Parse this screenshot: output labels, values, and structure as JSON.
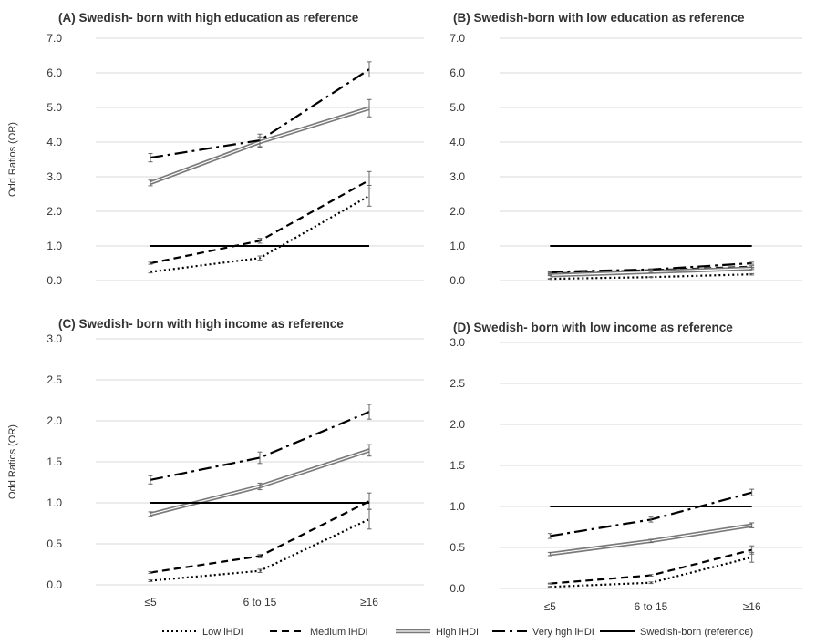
{
  "chart_data": [
    {
      "type": "line",
      "title": "(A) Swedish- born with high education as reference",
      "ylabel": "Odd Ratios (OR)",
      "ylim": [
        0,
        7
      ],
      "yticks": [
        "0.0",
        "1.0",
        "2.0",
        "3.0",
        "4.0",
        "5.0",
        "6.0",
        "7.0"
      ],
      "categories": [
        "≤5",
        "6 to 15",
        "≥16"
      ],
      "grid": true,
      "series": [
        {
          "name": "Low iHDI",
          "values": [
            0.25,
            0.65,
            2.45
          ],
          "err": [
            0.03,
            0.06,
            0.3
          ]
        },
        {
          "name": "Medium iHDI",
          "values": [
            0.5,
            1.15,
            2.9
          ],
          "err": [
            0.03,
            0.07,
            0.25
          ]
        },
        {
          "name": "High iHDI",
          "values": [
            2.82,
            4.0,
            4.98
          ],
          "err": [
            0.08,
            0.15,
            0.25
          ]
        },
        {
          "name": "Very hgh iHDI",
          "values": [
            3.55,
            4.05,
            6.1
          ],
          "err": [
            0.12,
            0.18,
            0.22
          ]
        },
        {
          "name": "Swedish-born (reference)",
          "values": [
            1.0,
            1.0,
            1.0
          ],
          "err": [
            0,
            0,
            0
          ]
        }
      ]
    },
    {
      "type": "line",
      "title": "(B) Swedish-born with low education as reference",
      "ylabel": "",
      "ylim": [
        0,
        7
      ],
      "yticks": [
        "0.0",
        "1.0",
        "2.0",
        "3.0",
        "4.0",
        "5.0",
        "6.0",
        "7.0"
      ],
      "categories": [
        "≤5",
        "6 to 15",
        "≥16"
      ],
      "grid": true,
      "series": [
        {
          "name": "Low iHDI",
          "values": [
            0.05,
            0.1,
            0.18
          ],
          "err": [
            0.01,
            0.01,
            0.02
          ]
        },
        {
          "name": "Medium iHDI",
          "values": [
            0.2,
            0.3,
            0.4
          ],
          "err": [
            0.01,
            0.02,
            0.03
          ]
        },
        {
          "name": "High iHDI",
          "values": [
            0.15,
            0.25,
            0.35
          ],
          "err": [
            0.01,
            0.02,
            0.03
          ]
        },
        {
          "name": "Very hgh iHDI",
          "values": [
            0.25,
            0.32,
            0.5
          ],
          "err": [
            0.01,
            0.02,
            0.03
          ]
        },
        {
          "name": "Swedish-born (reference)",
          "values": [
            1.0,
            1.0,
            1.0
          ],
          "err": [
            0,
            0,
            0
          ]
        }
      ]
    },
    {
      "type": "line",
      "title": "(C) Swedish- born with high income as reference",
      "ylabel": "Odd Ratios (OR)",
      "ylim": [
        0,
        3
      ],
      "yticks": [
        "0.0",
        "0.5",
        "1.0",
        "1.5",
        "2.0",
        "2.5",
        "3.0"
      ],
      "categories": [
        "≤5",
        "6 to 15",
        "≥16"
      ],
      "xtick_labels": true,
      "grid": true,
      "series": [
        {
          "name": "Low iHDI",
          "values": [
            0.05,
            0.17,
            0.8
          ],
          "err": [
            0.01,
            0.02,
            0.12
          ]
        },
        {
          "name": "Medium iHDI",
          "values": [
            0.15,
            0.35,
            1.02
          ],
          "err": [
            0.01,
            0.02,
            0.1
          ]
        },
        {
          "name": "High iHDI",
          "values": [
            0.86,
            1.2,
            1.64
          ],
          "err": [
            0.03,
            0.04,
            0.07
          ]
        },
        {
          "name": "Very hgh iHDI",
          "values": [
            1.28,
            1.55,
            2.11
          ],
          "err": [
            0.05,
            0.07,
            0.09
          ]
        },
        {
          "name": "Swedish-born (reference)",
          "values": [
            1.0,
            1.0,
            1.0
          ],
          "err": [
            0,
            0,
            0
          ]
        }
      ]
    },
    {
      "type": "line",
      "title": "(D) Swedish- born with low income as reference",
      "ylabel": "",
      "ylim": [
        0,
        3
      ],
      "yticks": [
        "0.0",
        "0.5",
        "1.0",
        "1.5",
        "2.0",
        "2.5",
        "3.0"
      ],
      "categories": [
        "≤5",
        "6 to 15",
        "≥16"
      ],
      "xtick_labels": true,
      "grid": true,
      "series": [
        {
          "name": "Low iHDI",
          "values": [
            0.02,
            0.07,
            0.38
          ],
          "err": [
            0.005,
            0.01,
            0.06
          ]
        },
        {
          "name": "Medium iHDI",
          "values": [
            0.06,
            0.16,
            0.47
          ],
          "err": [
            0.005,
            0.01,
            0.05
          ]
        },
        {
          "name": "High iHDI",
          "values": [
            0.42,
            0.58,
            0.77
          ],
          "err": [
            0.02,
            0.02,
            0.03
          ]
        },
        {
          "name": "Very hgh iHDI",
          "values": [
            0.64,
            0.84,
            1.17
          ],
          "err": [
            0.03,
            0.03,
            0.04
          ]
        },
        {
          "name": "Swedish-born (reference)",
          "values": [
            1.0,
            1.0,
            1.0
          ],
          "err": [
            0,
            0,
            0
          ]
        }
      ]
    }
  ],
  "legend": {
    "placement": "bottom",
    "items": [
      {
        "label": "Low iHDI",
        "style": "dotted"
      },
      {
        "label": "Medium iHDI",
        "style": "dashed"
      },
      {
        "label": "High iHDI",
        "style": "double"
      },
      {
        "label": "Very hgh iHDI",
        "style": "dashdot"
      },
      {
        "label": "Swedish-born (reference)",
        "style": "solid"
      }
    ]
  },
  "colors": {
    "line": "#000000",
    "double_outer": "#7a7a7a",
    "errorbar": "#666666",
    "grid": "#d9d9d9",
    "text": "#333333"
  }
}
